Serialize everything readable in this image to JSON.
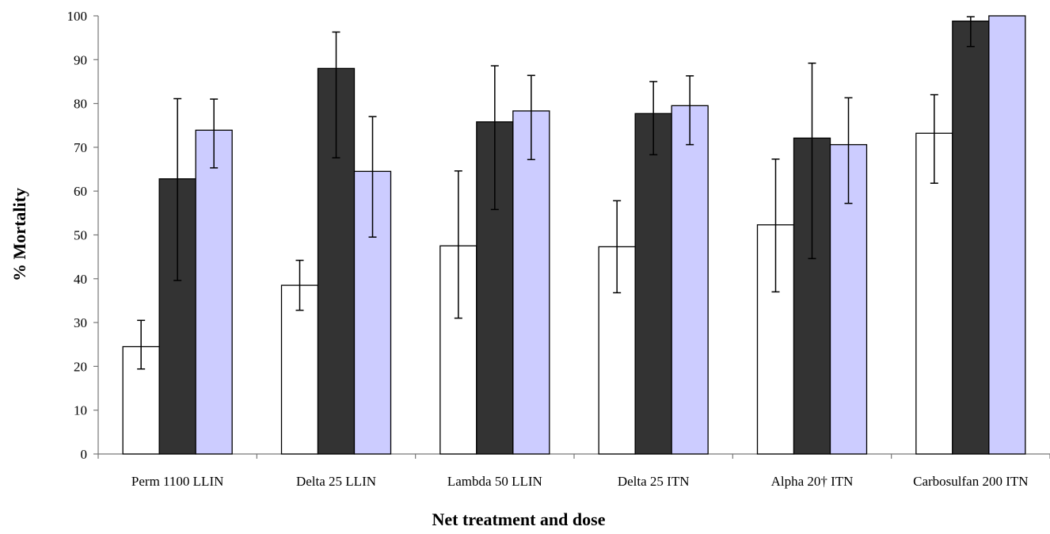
{
  "chart_data": {
    "type": "bar",
    "title": "",
    "xlabel": "Net treatment and dose",
    "ylabel": "% Mortality",
    "ylim": [
      0,
      100
    ],
    "yticks": [
      0,
      10,
      20,
      30,
      40,
      50,
      60,
      70,
      80,
      90,
      100
    ],
    "grid": false,
    "legend": "none",
    "categories": [
      "Perm 1100 LLIN",
      "Delta 25 LLIN",
      "Lambda 50 LLIN",
      "Delta 25 ITN",
      "Alpha 20† ITN",
      "Carbosulfan 200 ITN"
    ],
    "series": [
      {
        "color": "#ffffff",
        "values": [
          24.5,
          38.5,
          47.5,
          47.3,
          52.3,
          73.2
        ],
        "error_low": [
          19.4,
          32.8,
          31.0,
          36.8,
          37.0,
          61.8
        ],
        "error_high": [
          30.5,
          44.2,
          64.6,
          57.8,
          67.3,
          82.0
        ]
      },
      {
        "color": "#333333",
        "values": [
          62.8,
          88.0,
          75.8,
          77.7,
          72.1,
          98.8
        ],
        "error_low": [
          39.6,
          67.6,
          55.8,
          68.3,
          44.6,
          93.0
        ],
        "error_high": [
          81.1,
          96.3,
          88.6,
          85.0,
          89.2,
          99.8
        ]
      },
      {
        "color": "#ccccff",
        "values": [
          73.9,
          64.5,
          78.3,
          79.5,
          70.6,
          100.0
        ],
        "error_low": [
          65.3,
          49.5,
          67.2,
          70.6,
          57.2,
          100.0
        ],
        "error_high": [
          81.0,
          77.0,
          86.4,
          86.3,
          81.3,
          100.0
        ]
      }
    ]
  }
}
